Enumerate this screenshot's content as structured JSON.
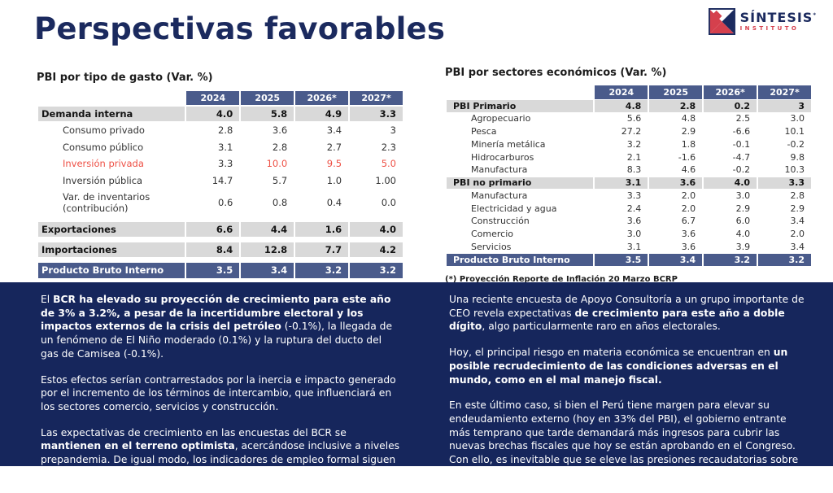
{
  "slide": {
    "title": "Perspectivas favorables"
  },
  "logo": {
    "brand": "SÍNTESIS",
    "brand_mark": "*",
    "subtitle": "INSTITUTO"
  },
  "colors": {
    "navy": "#1b2a5e",
    "slate_header": "#4a5b8b",
    "band_background": "#16265c",
    "highlight_red": "#ee5045",
    "row_gray": "#d9d9d9"
  },
  "tables": [
    {
      "title": "PBI por tipo de gasto (Var. %)",
      "columns": [
        "2024",
        "2025",
        "2026*",
        "2027*"
      ],
      "rows": [
        {
          "label": "Demanda interna",
          "style": "section",
          "values": [
            "4.0",
            "5.8",
            "4.9",
            "3.3"
          ]
        },
        {
          "label": "Consumo privado",
          "style": "sub",
          "values": [
            "2.8",
            "3.6",
            "3.4",
            "3"
          ]
        },
        {
          "label": "Consumo público",
          "style": "sub",
          "values": [
            "3.1",
            "2.8",
            "2.7",
            "2.3"
          ]
        },
        {
          "label": "Inversión privada",
          "style": "sub",
          "label_red": true,
          "values": [
            "3.3",
            "10.0",
            "9.5",
            "5.0"
          ],
          "value_red": [
            false,
            true,
            true,
            true
          ]
        },
        {
          "label": "Inversión pública",
          "style": "sub",
          "values": [
            "14.7",
            "5.7",
            "1.0",
            "1.00"
          ]
        },
        {
          "label": "Var. de inventarios (contribución)",
          "style": "sub",
          "values": [
            "0.6",
            "0.8",
            "0.4",
            "0.0"
          ]
        },
        {
          "label": "Exportaciones",
          "style": "section",
          "gap_before": true,
          "values": [
            "6.6",
            "4.4",
            "1.6",
            "4.0"
          ]
        },
        {
          "label": "Importaciones",
          "style": "section",
          "gap_before": true,
          "values": [
            "8.4",
            "12.8",
            "7.7",
            "4.2"
          ]
        },
        {
          "label": "Producto Bruto Interno",
          "style": "total",
          "gap_before": true,
          "values": [
            "3.5",
            "3.4",
            "3.2",
            "3.2"
          ]
        }
      ],
      "footnote": "(*) Proyección Reporte de Inflación 20 Marzo BCRP"
    },
    {
      "title": "PBI por sectores económicos (Var. %)",
      "columns": [
        "2024",
        "2025",
        "2026*",
        "2027*"
      ],
      "rows": [
        {
          "label": "PBI Primario",
          "style": "section",
          "values": [
            "4.8",
            "2.8",
            "0.2",
            "3"
          ]
        },
        {
          "label": "Agropecuario",
          "style": "sub",
          "values": [
            "5.6",
            "4.8",
            "2.5",
            "3.0"
          ]
        },
        {
          "label": "Pesca",
          "style": "sub",
          "values": [
            "27.2",
            "2.9",
            "-6.6",
            "10.1"
          ]
        },
        {
          "label": "Minería metálica",
          "style": "sub",
          "values": [
            "3.2",
            "1.8",
            "-0.1",
            "-0.2"
          ]
        },
        {
          "label": "Hidrocarburos",
          "style": "sub",
          "values": [
            "2.1",
            "-1.6",
            "-4.7",
            "9.8"
          ]
        },
        {
          "label": "Manufactura",
          "style": "sub",
          "values": [
            "8.3",
            "4.6",
            "-0.2",
            "10.3"
          ]
        },
        {
          "label": "PBI no primario",
          "style": "section",
          "values": [
            "3.1",
            "3.6",
            "4.0",
            "3.3"
          ]
        },
        {
          "label": "Manufactura",
          "style": "sub",
          "values": [
            "3.3",
            "2.0",
            "3.0",
            "2.8"
          ]
        },
        {
          "label": "Electricidad y agua",
          "style": "sub",
          "values": [
            "2.4",
            "2.0",
            "2.9",
            "2.9"
          ]
        },
        {
          "label": "Construcción",
          "style": "sub",
          "values": [
            "3.6",
            "6.7",
            "6.0",
            "3.4"
          ]
        },
        {
          "label": "Comercio",
          "style": "sub",
          "values": [
            "3.0",
            "3.6",
            "4.0",
            "2.0"
          ]
        },
        {
          "label": "Servicios",
          "style": "sub",
          "values": [
            "3.1",
            "3.6",
            "3.9",
            "3.4"
          ]
        },
        {
          "label": "Producto Bruto Interno",
          "style": "total",
          "values": [
            "3.5",
            "3.4",
            "3.2",
            "3.2"
          ]
        }
      ],
      "footnote": "(*) Proyección Reporte de Inflación 20 Marzo BCRP"
    }
  ],
  "commentary": {
    "left": [
      [
        {
          "t": "El ",
          "b": false
        },
        {
          "t": "BCR ha elevado su proyección de crecimiento para este año de 3% a 3.2%, a pesar de la incertidumbre electoral y los impactos externos de la crisis del petróleo",
          "b": true
        },
        {
          "t": " (-0.1%), la llegada de un fenómeno de El Niño moderado (0.1%) y la ruptura del ducto del gas de Camisea (-0.1%).",
          "b": false
        }
      ],
      [
        {
          "t": "Estos efectos serían contrarrestados por la inercia e impacto generado por el incremento de los términos de intercambio, que influenciará en los sectores comercio, servicios y construcción.",
          "b": false
        }
      ],
      [
        {
          "t": "Las expectativas de crecimiento en las encuestas del BCR se ",
          "b": false
        },
        {
          "t": "mantienen en el terreno optimista",
          "b": true
        },
        {
          "t": ", acercándose inclusive a niveles prepandemia. De igual modo, los indicadores de empleo formal siguen avanzando.",
          "b": false
        }
      ]
    ],
    "right": [
      [
        {
          "t": "Una reciente encuesta de Apoyo Consultoría a un grupo importante de CEO revela expectativas ",
          "b": false
        },
        {
          "t": "de crecimiento para este año a doble dígito",
          "b": true
        },
        {
          "t": ", algo particularmente raro en años electorales.",
          "b": false
        }
      ],
      [
        {
          "t": "Hoy, el principal riesgo en materia económica se encuentran en ",
          "b": false
        },
        {
          "t": "un posible recrudecimiento de las condiciones adversas en el mundo, como en el mal manejo fiscal.",
          "b": true
        }
      ],
      [
        {
          "t": "En este último caso, si bien el Perú tiene margen para elevar su endeudamiento externo (hoy en 33% del PBI), el gobierno entrante más temprano que tarde demandará más ingresos para cubrir las nuevas brechas fiscales que hoy se están aprobando en el Congreso. Con ello, es inevitable que se eleve las presiones recaudatorias sobre sectores formales.",
          "b": false
        }
      ]
    ]
  }
}
